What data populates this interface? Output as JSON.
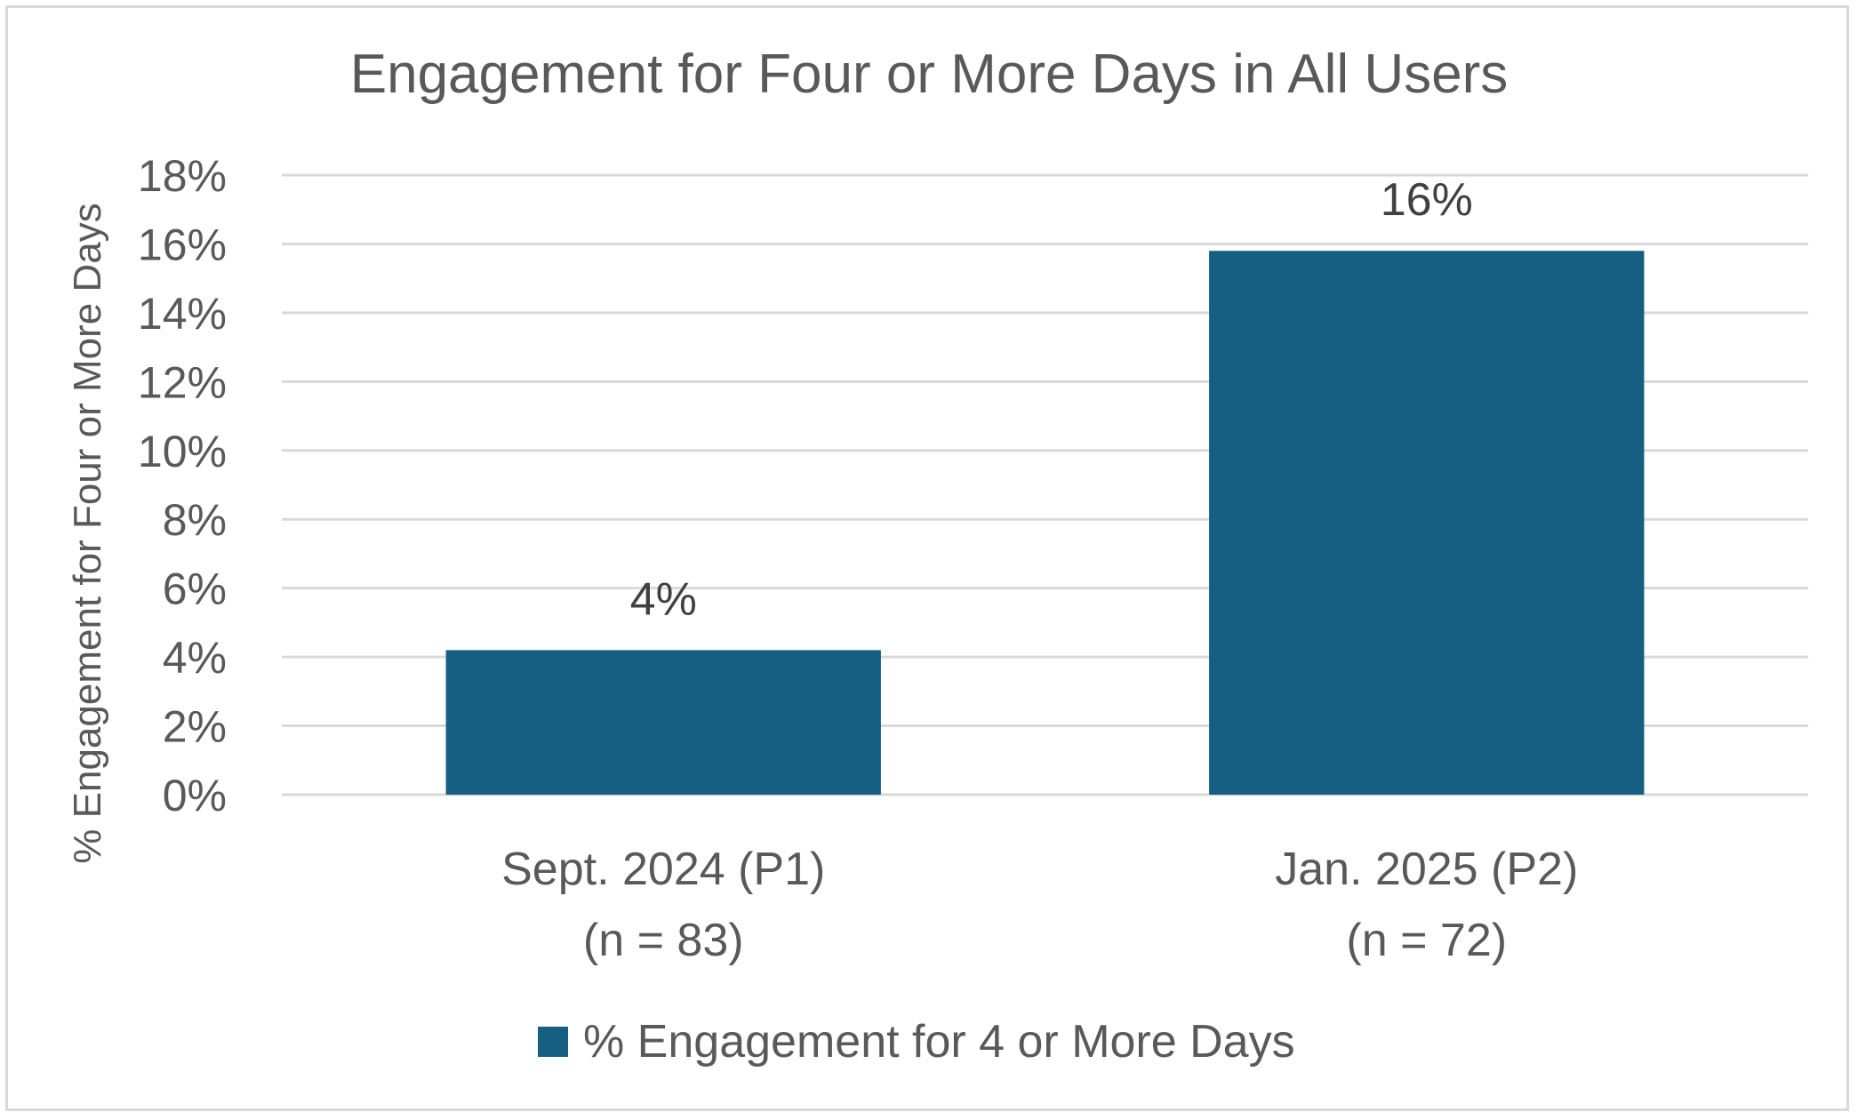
{
  "chart_data": {
    "type": "bar",
    "title": "Engagement for Four or More Days in All Users",
    "xlabel": "",
    "ylabel": "% Engagement for Four or More Days",
    "categories": [
      [
        "Sept. 2024 (P1)",
        "(n = 83)"
      ],
      [
        "Jan. 2025 (P2)",
        "(n = 72)"
      ]
    ],
    "series": [
      {
        "name": "% Engagement for 4 or More Days",
        "values": [
          4.2,
          15.8
        ],
        "data_labels": [
          "4%",
          "16%"
        ],
        "color": "#175f82"
      }
    ],
    "ylim": [
      0,
      18
    ],
    "y_ticks": [
      "0%",
      "2%",
      "4%",
      "6%",
      "8%",
      "10%",
      "12%",
      "14%",
      "16%",
      "18%"
    ],
    "y_tick_values": [
      0,
      2,
      4,
      6,
      8,
      10,
      12,
      14,
      16,
      18
    ],
    "grid": true,
    "legend_position": "bottom",
    "gridline_color": "#d9d9d9",
    "text_color": "#595959"
  }
}
